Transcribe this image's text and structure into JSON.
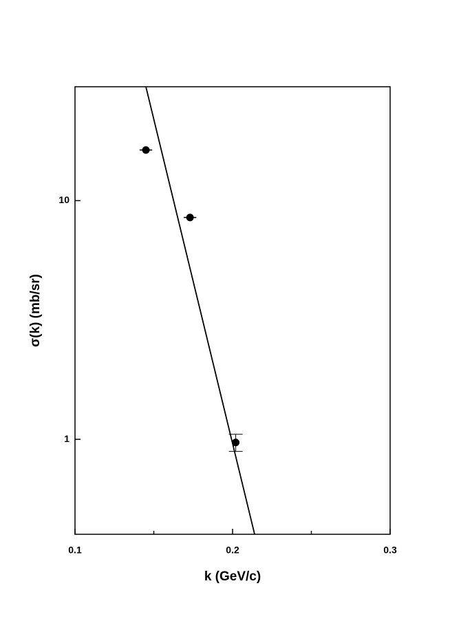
{
  "chart_data": {
    "type": "scatter",
    "x_label": "k (GeV/c)",
    "y_label": "σ(k)   (mb/sr)",
    "xlim": [
      0.1,
      0.3
    ],
    "xticks": [
      0.1,
      0.2,
      0.3
    ],
    "xminorticks": [
      0.15,
      0.25
    ],
    "ylim": [
      0.4,
      30
    ],
    "yticks": [
      1,
      10
    ],
    "log_y": true,
    "series": [
      {
        "type": "scatter",
        "color": "#000000",
        "x": [
          0.145,
          0.173,
          0.202
        ],
        "values": [
          16.3,
          8.5,
          0.97
        ],
        "xerr": [
          0.004,
          0.004,
          null
        ],
        "yerr": [
          null,
          null,
          0.08
        ]
      },
      {
        "type": "line",
        "color": "#000000",
        "x": [
          0.145,
          0.214
        ],
        "values": [
          30,
          0.4
        ]
      }
    ]
  }
}
